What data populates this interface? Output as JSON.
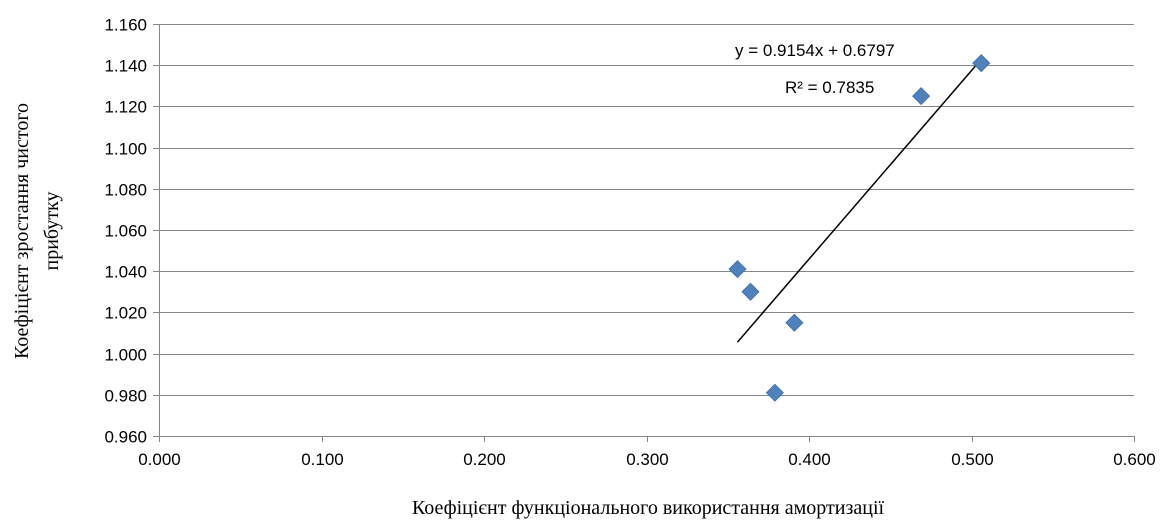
{
  "chart_data": {
    "type": "scatter",
    "title": "",
    "xlabel": "Коефіцієнт функціонального використання амортизації",
    "ylabel": "Коефіцієнт зростання чистого прибутку",
    "ylabel_lines": [
      "Коефіцієнт зростання чистого",
      "прибутку"
    ],
    "xlim": [
      0.0,
      0.6
    ],
    "ylim": [
      0.96,
      1.16
    ],
    "x_ticks": [
      0.0,
      0.1,
      0.2,
      0.3,
      0.4,
      0.5,
      0.6
    ],
    "x_tick_labels": [
      "0.000",
      "0.100",
      "0.200",
      "0.300",
      "0.400",
      "0.500",
      "0.600"
    ],
    "y_ticks": [
      0.96,
      0.98,
      1.0,
      1.02,
      1.04,
      1.06,
      1.08,
      1.1,
      1.12,
      1.14,
      1.16
    ],
    "y_tick_labels": [
      "0.960",
      "0.980",
      "1.000",
      "1.020",
      "1.040",
      "1.060",
      "1.080",
      "1.100",
      "1.120",
      "1.140",
      "1.160"
    ],
    "grid": "horizontal",
    "legend": "none",
    "series": [
      {
        "marker": "diamond",
        "color": "#4f81bd",
        "points": [
          {
            "x": 0.356,
            "y": 1.041
          },
          {
            "x": 0.364,
            "y": 1.03
          },
          {
            "x": 0.379,
            "y": 0.981
          },
          {
            "x": 0.391,
            "y": 1.015
          },
          {
            "x": 0.469,
            "y": 1.125
          },
          {
            "x": 0.506,
            "y": 1.141
          }
        ]
      }
    ],
    "trendline": {
      "type": "linear",
      "slope": 0.9154,
      "intercept": 0.6797,
      "x_range": [
        0.356,
        0.506
      ],
      "color": "#000000",
      "equation_label": "y = 0.9154x + 0.6797",
      "r2_label": "R² = 0.7835"
    }
  }
}
